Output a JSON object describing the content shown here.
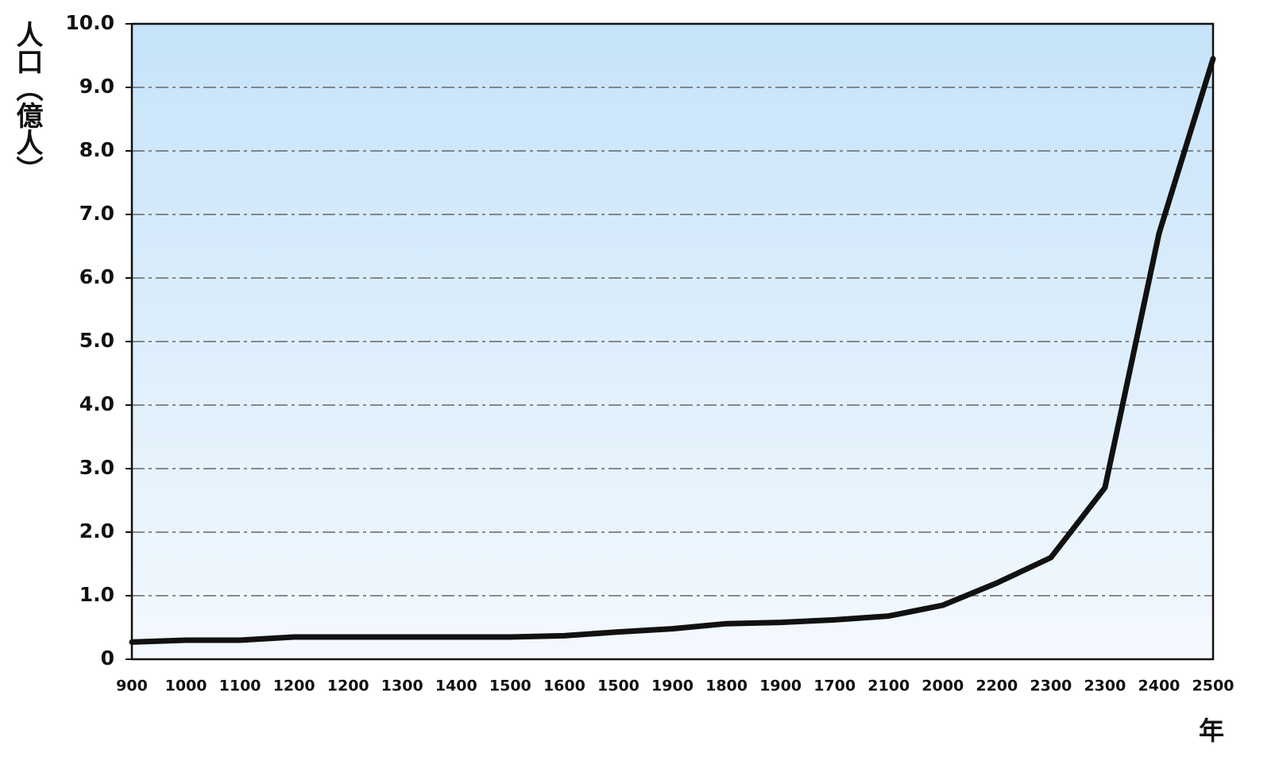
{
  "chart_data": {
    "type": "line",
    "y_label": "人口（億人）",
    "x_label": "年",
    "categories": [
      "900",
      "1000",
      "1100",
      "1200",
      "1200",
      "1300",
      "1400",
      "1500",
      "1600",
      "1500",
      "1900",
      "1800",
      "1900",
      "1700",
      "2100",
      "2000",
      "2200",
      "2300",
      "2300",
      "2400",
      "2500"
    ],
    "series": [
      {
        "color": "#111111",
        "values": [
          0.27,
          0.3,
          0.3,
          0.35,
          0.35,
          0.35,
          0.35,
          0.35,
          0.37,
          0.43,
          0.48,
          0.56,
          0.58,
          0.62,
          0.68,
          0.85,
          1.2,
          1.6,
          2.7,
          6.7,
          9.45
        ]
      }
    ],
    "ylim": [
      0,
      10
    ],
    "yticks": [
      0,
      {
        "value": 1,
        "label": "1.0"
      },
      {
        "value": 2,
        "label": "2.0"
      },
      {
        "value": 3,
        "label": "3.0"
      },
      {
        "value": 4,
        "label": "4.0"
      },
      {
        "value": 5,
        "label": "5.0"
      },
      {
        "value": 6,
        "label": "6.0"
      },
      {
        "value": 7,
        "label": "7.0"
      },
      {
        "value": 8,
        "label": "8.0"
      },
      {
        "value": 9,
        "label": "9.0"
      },
      {
        "value": 10,
        "label": "10.0"
      }
    ],
    "grid": true
  }
}
